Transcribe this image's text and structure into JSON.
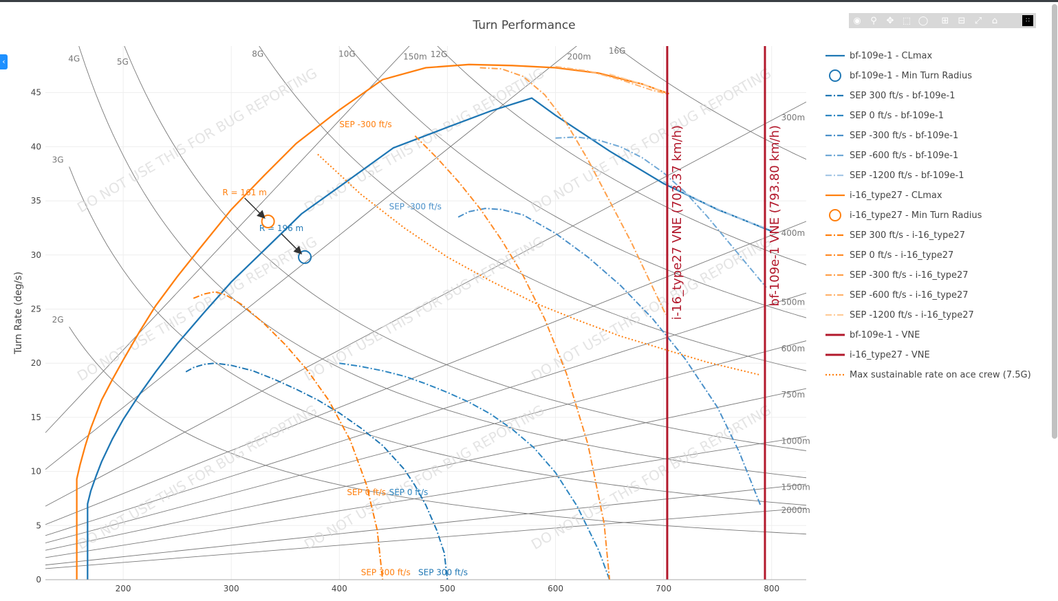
{
  "modebar": {
    "icons": [
      "camera-icon",
      "zoom-icon",
      "pan-icon",
      "box-select-icon",
      "lasso-icon",
      "zoom-in-icon",
      "zoom-out-icon",
      "autoscale-icon",
      "reset-axes-icon",
      "plotly-logo-icon"
    ]
  },
  "watermark": "DO NOT USE THIS FOR BUG REPORTING",
  "chart_data": {
    "type": "line",
    "title": "Turn Performance",
    "xlabel": "",
    "ylabel": "Turn Rate (deg/s)",
    "xlim": [
      128,
      832
    ],
    "ylim": [
      0,
      49.3
    ],
    "x_ticks": [
      200,
      300,
      400,
      500,
      600,
      700,
      800
    ],
    "y_ticks": [
      0,
      5,
      10,
      15,
      20,
      25,
      30,
      35,
      40,
      45
    ],
    "colors": {
      "blue": "#1f77b4",
      "orange": "#ff7f0e",
      "vne": "#b2182b",
      "grid": "#eeeeee",
      "ref": "#777777"
    },
    "g_lines": [
      {
        "label": "2G",
        "g": 2
      },
      {
        "label": "3G",
        "g": 3
      },
      {
        "label": "4G",
        "g": 4
      },
      {
        "label": "5G",
        "g": 5
      },
      {
        "label": "8G",
        "g": 8
      },
      {
        "label": "10G",
        "g": 10
      },
      {
        "label": "12G",
        "g": 12
      },
      {
        "label": "16G",
        "g": 16
      }
    ],
    "radius_lines": [
      {
        "label": "150m",
        "r": 150
      },
      {
        "label": "200m",
        "r": 200
      },
      {
        "label": "300m",
        "r": 300
      },
      {
        "label": "400m",
        "r": 400
      },
      {
        "label": "500m",
        "r": 500
      },
      {
        "label": "600m",
        "r": 600
      },
      {
        "label": "750m",
        "r": 750
      },
      {
        "label": "1000m",
        "r": 1000
      },
      {
        "label": "1500m",
        "r": 1500
      },
      {
        "label": "2000m",
        "r": 2000
      }
    ],
    "series": [
      {
        "name": "bf-109e-1 - CLmax",
        "kind": "line",
        "color": "#1f77b4",
        "dash": "solid",
        "x": [
          167,
          167,
          170,
          175,
          180,
          190,
          200,
          215,
          230,
          250,
          275,
          300,
          330,
          365,
          400,
          450,
          500,
          540,
          578,
          600,
          650,
          700,
          750,
          800
        ],
        "y": [
          0,
          7.0,
          8.2,
          9.6,
          10.9,
          13.0,
          14.8,
          17.1,
          19.2,
          21.8,
          24.7,
          27.5,
          30.4,
          33.8,
          36.3,
          39.9,
          41.8,
          43.3,
          44.5,
          42.9,
          39.6,
          36.6,
          34.2,
          32.2
        ]
      },
      {
        "name": "bf-109e-1 - Min Turn Radius",
        "kind": "marker",
        "color": "#1f77b4",
        "x": [
          368
        ],
        "y": [
          29.8
        ],
        "annotation": "R = 196 m"
      },
      {
        "name": "SEP 300 ft/s - bf-109e-1",
        "kind": "line",
        "color": "#1f77b4",
        "dash": "dashdot",
        "x": [
          258,
          265,
          275,
          285,
          300,
          320,
          340,
          360,
          380,
          400,
          420,
          440,
          460,
          470,
          480,
          490,
          497,
          500
        ],
        "y": [
          19.2,
          19.6,
          19.9,
          20.0,
          19.8,
          19.3,
          18.5,
          17.6,
          16.6,
          15.4,
          14.0,
          12.4,
          10.2,
          8.7,
          6.9,
          4.6,
          2.5,
          0
        ]
      },
      {
        "name": "SEP 0 ft/s - bf-109e-1",
        "kind": "line",
        "color": "#2e86c1",
        "dash": "dashdot",
        "x": [
          400,
          420,
          440,
          460,
          480,
          500,
          520,
          540,
          560,
          580,
          600,
          620,
          640,
          650
        ],
        "y": [
          20.0,
          19.7,
          19.3,
          18.8,
          18.1,
          17.3,
          16.4,
          15.3,
          13.9,
          12.2,
          9.9,
          6.8,
          2.7,
          0
        ]
      },
      {
        "name": "SEP -300 ft/s - bf-109e-1",
        "kind": "line",
        "color": "#4a90c9",
        "dash": "dashdot",
        "x": [
          510,
          520,
          535,
          550,
          570,
          600,
          630,
          660,
          690,
          720,
          750,
          770,
          790
        ],
        "y": [
          33.5,
          34.0,
          34.3,
          34.2,
          33.7,
          32.0,
          29.8,
          27.2,
          24.1,
          20.4,
          15.9,
          11.8,
          6.8
        ]
      },
      {
        "name": "SEP -600 ft/s - bf-109e-1",
        "kind": "line",
        "color": "#6fa8d6",
        "dash": "dashdot",
        "x": [
          600,
          620,
          640,
          660,
          680,
          700,
          720,
          740,
          760,
          780,
          795
        ],
        "y": [
          40.8,
          40.9,
          40.6,
          40.0,
          39.0,
          37.6,
          35.8,
          33.6,
          31.2,
          28.8,
          27.0
        ]
      },
      {
        "name": "SEP -1200 ft/s - bf-109e-1",
        "kind": "line",
        "color": "#a6c8e6",
        "dash": "dashdot",
        "x": [
          700,
          720,
          740,
          760,
          780,
          800
        ],
        "y": [
          36.8,
          35.7,
          34.7,
          33.8,
          33.0,
          32.3
        ]
      },
      {
        "name": "i-16_type27 - CLmax",
        "kind": "line",
        "color": "#ff7f0e",
        "dash": "solid",
        "x": [
          157,
          157,
          160,
          165,
          170,
          180,
          190,
          200,
          215,
          230,
          250,
          270,
          300,
          330,
          360,
          400,
          440,
          480,
          520,
          560,
          600,
          640,
          680,
          705
        ],
        "y": [
          0,
          9.3,
          10.6,
          12.4,
          14.0,
          16.6,
          18.5,
          20.3,
          22.9,
          25.3,
          28.0,
          30.5,
          34.2,
          37.3,
          40.3,
          43.4,
          46.2,
          47.3,
          47.6,
          47.5,
          47.3,
          46.8,
          45.8,
          44.9
        ]
      },
      {
        "name": "i-16_type27 - Min Turn Radius",
        "kind": "marker",
        "color": "#ff7f0e",
        "x": [
          334
        ],
        "y": [
          33.1
        ],
        "annotation": "R = 161 m"
      },
      {
        "name": "SEP 300 ft/s - i-16_type27",
        "kind": "line",
        "color": "#ff7f0e",
        "dash": "dashdot",
        "x": [
          265,
          275,
          285,
          295,
          310,
          330,
          350,
          370,
          390,
          410,
          425,
          435,
          440
        ],
        "y": [
          26.0,
          26.4,
          26.6,
          26.3,
          25.4,
          23.7,
          21.7,
          19.4,
          16.6,
          12.9,
          8.8,
          4.6,
          0
        ]
      },
      {
        "name": "SEP 0 ft/s - i-16_type27",
        "kind": "line",
        "color": "#ff8c28",
        "dash": "dashdot",
        "x": [
          470,
          490,
          510,
          530,
          550,
          570,
          590,
          610,
          630,
          645,
          650
        ],
        "y": [
          41.0,
          39.0,
          36.8,
          34.3,
          31.4,
          28.1,
          24.1,
          19.1,
          12.5,
          5.2,
          0
        ]
      },
      {
        "name": "SEP -300 ft/s - i-16_type27",
        "kind": "line",
        "color": "#ffa04a",
        "dash": "dashdot",
        "x": [
          530,
          550,
          570,
          590,
          610,
          630,
          650,
          670,
          690,
          702
        ],
        "y": [
          47.3,
          47.2,
          46.5,
          44.8,
          42.2,
          38.8,
          35.0,
          31.2,
          27.0,
          24.5
        ]
      },
      {
        "name": "SEP -600 ft/s - i-16_type27",
        "kind": "line",
        "color": "#ffb36e",
        "dash": "dashdot",
        "x": [
          600,
          630,
          660,
          690,
          703
        ],
        "y": [
          47.4,
          47.0,
          46.2,
          45.2,
          44.9
        ]
      },
      {
        "name": "SEP -1200 ft/s - i-16_type27",
        "kind": "line",
        "color": "#ffcc99",
        "dash": "dashdot",
        "x": [
          650,
          680,
          703
        ],
        "y": [
          46.7,
          45.8,
          45.0
        ]
      },
      {
        "name": "bf-109e-1 - VNE",
        "kind": "vline",
        "color": "#b2182b",
        "x": [
          793.8
        ],
        "label": "bf-109e-1 VNE (793.80 km/h)"
      },
      {
        "name": "i-16_type27 - VNE",
        "kind": "vline",
        "color": "#b2182b",
        "x": [
          703.37
        ],
        "label": "i-16_type27 VNE (703.37 km/h)"
      },
      {
        "name": "Max sustainable rate on ace crew (7.5G)",
        "kind": "line",
        "color": "#ff7f0e",
        "dash": "dot",
        "x": [
          380,
          420,
          460,
          500,
          540,
          580,
          620,
          660,
          700,
          740,
          790
        ],
        "y": [
          39.3,
          35.6,
          32.5,
          29.8,
          27.6,
          25.6,
          24.0,
          22.5,
          21.3,
          20.1,
          18.9
        ]
      }
    ],
    "sep_labels": [
      {
        "text": "SEP -300 ft/s",
        "x": 400,
        "y": 41.8,
        "color": "#ff7f0e"
      },
      {
        "text": "SEP -300 ft/s",
        "x": 446,
        "y": 34.2,
        "color": "#4a90c9"
      },
      {
        "text": "SEP 0 ft/s",
        "x": 407,
        "y": 7.8,
        "color": "#ff7f0e"
      },
      {
        "text": "SEP 0 ft/s",
        "x": 446,
        "y": 7.8,
        "color": "#2e86c1"
      },
      {
        "text": "SEP 300 ft/s",
        "x": 420,
        "y": 0.4,
        "color": "#ff7f0e"
      },
      {
        "text": "SEP 300 ft/s",
        "x": 473,
        "y": 0.4,
        "color": "#1f77b4"
      }
    ]
  }
}
